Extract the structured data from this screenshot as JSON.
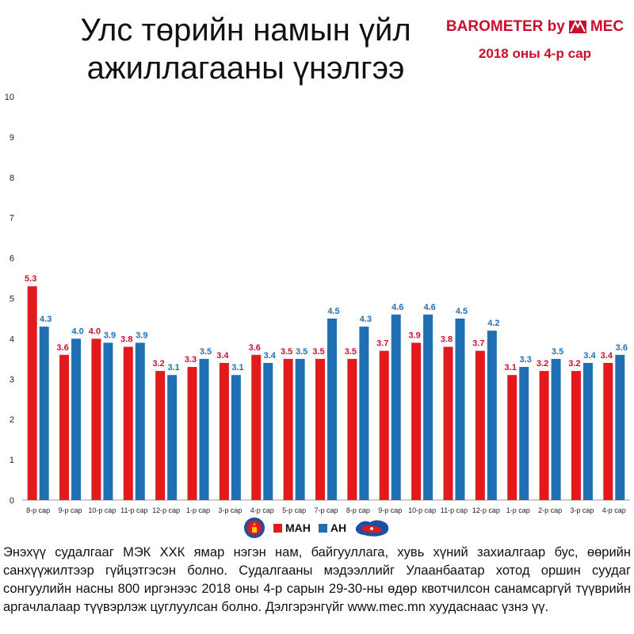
{
  "title": {
    "line1": "Улс төрийн намын үйл",
    "line2": "ажиллагааны үнэлгээ"
  },
  "brand": {
    "text": "BAROMETER by",
    "logo_text": "MEC",
    "subtitle": "2018 оны 4-р сар",
    "color": "#c8102e"
  },
  "legend": {
    "items": [
      {
        "label": "МАН",
        "color": "#e31a1c",
        "icon": "man-emblem-icon"
      },
      {
        "label": "АН",
        "color": "#1f6fb4",
        "icon": "an-map-icon"
      }
    ]
  },
  "description": "Энэхүү судалгааг МЭК ХХК ямар нэгэн нам, байгууллага, хувь хүний захиалгаар бус, өөрийн санхүүжилтээр гүйцэтгэсэн болно. Судалгааны мэдээллийг Улаанбаатар хотод оршин суудаг сонгуулийн насны 800 иргэнээс 2018 оны 4-р сарын 29-30-ны өдөр квотчилсон санамсаргүй түүврийн аргачлалаар түүвэрлэж цуглуулсан болно. Дэлгэрэнгүйг www.mec.mn хуудаснаас үзнэ үү.",
  "chart_data": {
    "type": "bar",
    "categories": [
      "8-р сар",
      "9-р сар",
      "10-р сар",
      "11-р сар",
      "12-р сар",
      "1-р сар",
      "3-р сар",
      "4-р сар",
      "5-р сар",
      "7-р сар",
      "8-р сар",
      "9-р сар",
      "10-р сар",
      "11-р сар",
      "12-р сар",
      "1-р сар",
      "2-р сар",
      "3-р сар",
      "4-р сар"
    ],
    "series": [
      {
        "name": "МАН",
        "color": "#e31a1c",
        "label_color": "#c8102e",
        "values": [
          5.3,
          3.6,
          4.0,
          3.8,
          3.2,
          3.3,
          3.4,
          3.6,
          3.5,
          3.5,
          3.5,
          3.7,
          3.9,
          3.8,
          3.7,
          3.1,
          3.2,
          3.2,
          3.4
        ]
      },
      {
        "name": "АН",
        "color": "#1f6fb4",
        "label_color": "#1f6fb4",
        "values": [
          4.3,
          4.0,
          3.9,
          3.9,
          3.1,
          3.5,
          3.1,
          3.4,
          3.5,
          4.5,
          4.3,
          4.6,
          4.6,
          4.5,
          4.2,
          3.3,
          3.5,
          3.4,
          3.6
        ]
      }
    ],
    "ylim": [
      0,
      10
    ],
    "yticks": [
      0,
      1,
      2,
      3,
      4,
      5,
      6,
      7,
      8,
      9,
      10
    ],
    "grid": false,
    "legend": "bottom-center",
    "title": "",
    "xlabel": "",
    "ylabel": ""
  }
}
